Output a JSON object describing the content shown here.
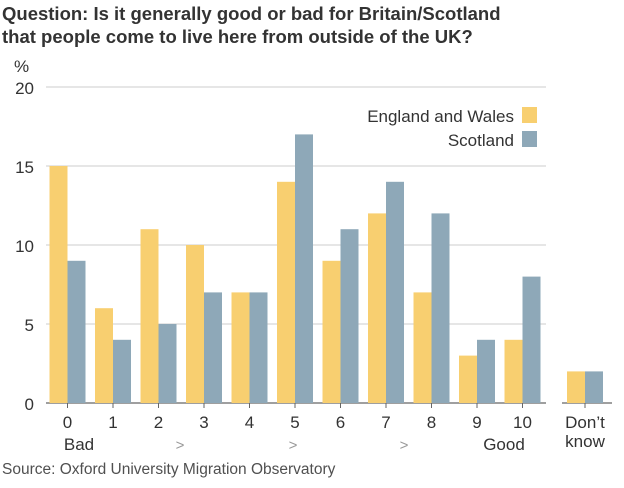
{
  "title_line1": "Question: Is it generally good or bad for Britain/Scotland",
  "title_line2": "that people come to live here from outside of the UK?",
  "source": "Source: Oxford University Migration Observatory",
  "chart_data": {
    "type": "bar",
    "ylabel": "%",
    "ylim": [
      0,
      20
    ],
    "yticks": [
      0,
      5,
      10,
      15,
      20
    ],
    "grid": true,
    "legend_position": "top-right",
    "categories": [
      "0",
      "1",
      "2",
      "3",
      "4",
      "5",
      "6",
      "7",
      "8",
      "9",
      "10",
      "Don't know"
    ],
    "category_display": [
      "0",
      "1",
      "2",
      "3",
      "4",
      "5",
      "6",
      "7",
      "8",
      "9",
      "10",
      "Don’t|know"
    ],
    "scale_annotations": [
      "Bad",
      ">",
      ">",
      ">",
      "Good"
    ],
    "series": [
      {
        "name": "England and Wales",
        "color": "#f8cf70",
        "values": [
          15,
          6,
          11,
          10,
          7,
          14,
          9,
          12,
          7,
          3,
          4,
          2
        ]
      },
      {
        "name": "Scotland",
        "color": "#8ea8b8",
        "values": [
          9,
          4,
          5,
          7,
          7,
          17,
          11,
          14,
          12,
          4,
          8,
          2
        ]
      }
    ]
  }
}
